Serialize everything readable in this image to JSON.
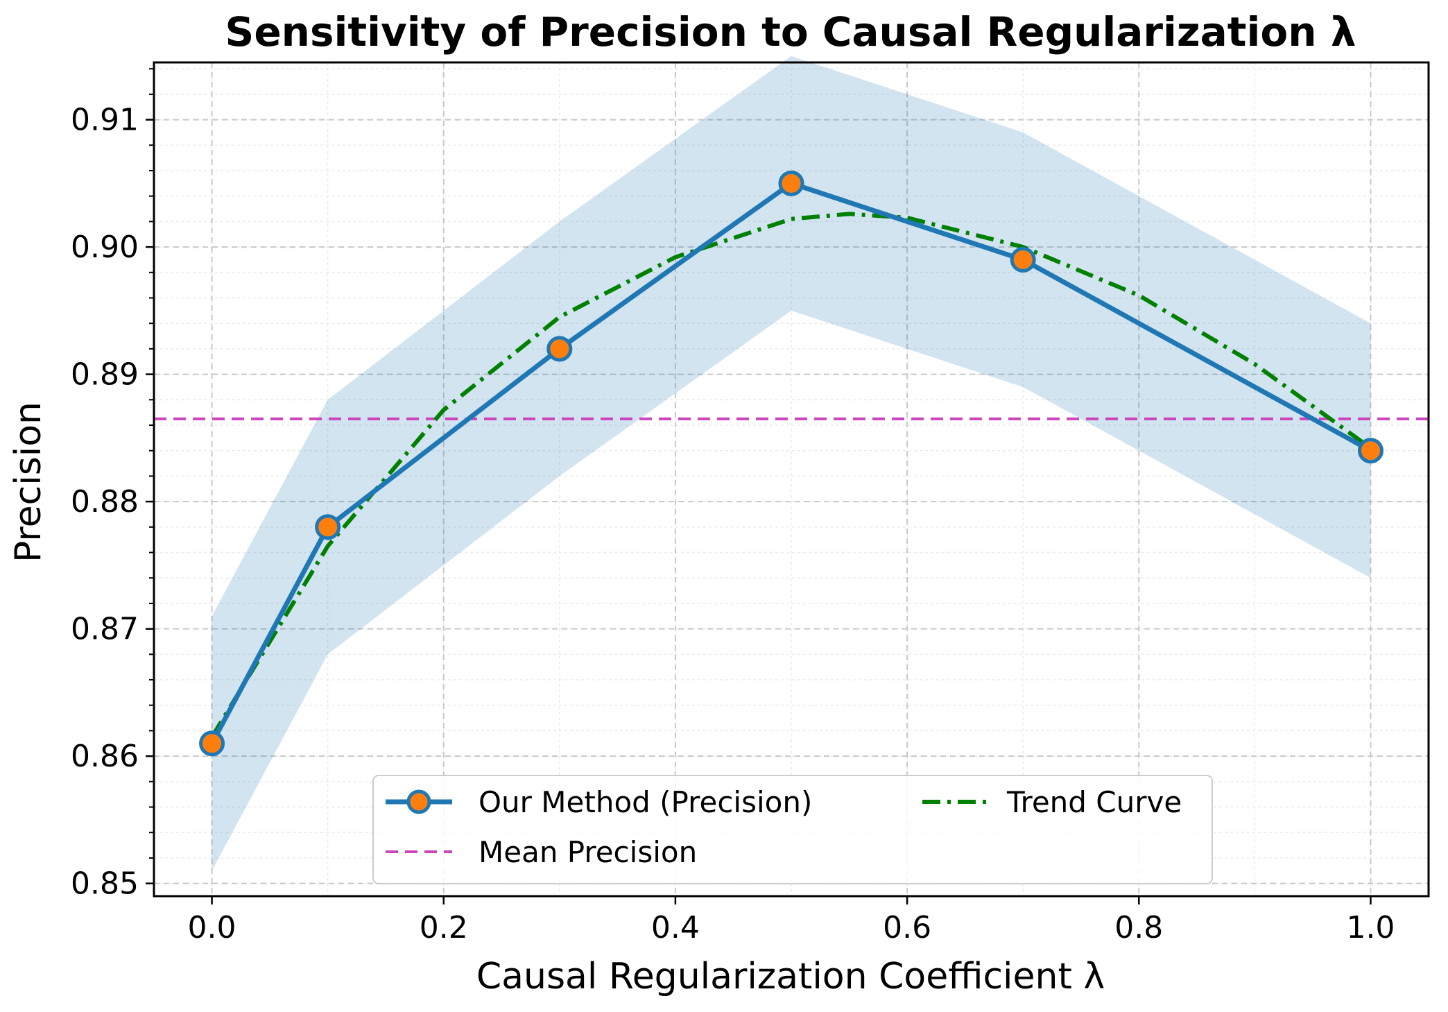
{
  "chart_data": {
    "type": "line",
    "title": "Sensitivity of Precision to Causal Regularization λ",
    "xlabel": "Causal Regularization Coefficient λ",
    "ylabel": "Precision",
    "xlim": [
      -0.05,
      1.05
    ],
    "ylim": [
      0.849,
      0.9145
    ],
    "xticks": [
      0.0,
      0.2,
      0.4,
      0.6,
      0.8,
      1.0
    ],
    "xtick_labels": [
      "0.0",
      "0.2",
      "0.4",
      "0.6",
      "0.8",
      "1.0"
    ],
    "yticks": [
      0.85,
      0.86,
      0.87,
      0.88,
      0.89,
      0.9,
      0.91
    ],
    "ytick_labels": [
      "0.85",
      "0.86",
      "0.87",
      "0.88",
      "0.89",
      "0.90",
      "0.91"
    ],
    "grid": true,
    "legend_position": "lower-center",
    "series": [
      {
        "name": "Our Method (Precision)",
        "style": "line-marker",
        "color": "#1f77b4",
        "marker_color": "#ff7f0e",
        "x": [
          0.0,
          0.1,
          0.3,
          0.5,
          0.7,
          1.0
        ],
        "y": [
          0.861,
          0.878,
          0.892,
          0.905,
          0.899,
          0.884
        ]
      },
      {
        "name": "Trend Curve",
        "style": "dash-dot",
        "color": "#008000",
        "x": [
          0.0,
          0.1,
          0.2,
          0.3,
          0.4,
          0.5,
          0.55,
          0.6,
          0.7,
          0.8,
          0.9,
          1.0
        ],
        "y": [
          0.8615,
          0.8765,
          0.8872,
          0.8945,
          0.8992,
          0.9022,
          0.9026,
          0.9023,
          0.9,
          0.8962,
          0.8908,
          0.8842
        ]
      },
      {
        "name": "Mean Precision",
        "style": "dashed-hline",
        "color": "#cc44bb",
        "y_value": 0.8865
      }
    ],
    "band": {
      "color": "#1f77b4",
      "x": [
        0.0,
        0.1,
        0.3,
        0.5,
        0.7,
        1.0
      ],
      "lower": [
        0.851,
        0.868,
        0.882,
        0.895,
        0.889,
        0.874
      ],
      "upper": [
        0.871,
        0.888,
        0.902,
        0.915,
        0.909,
        0.894
      ]
    }
  }
}
